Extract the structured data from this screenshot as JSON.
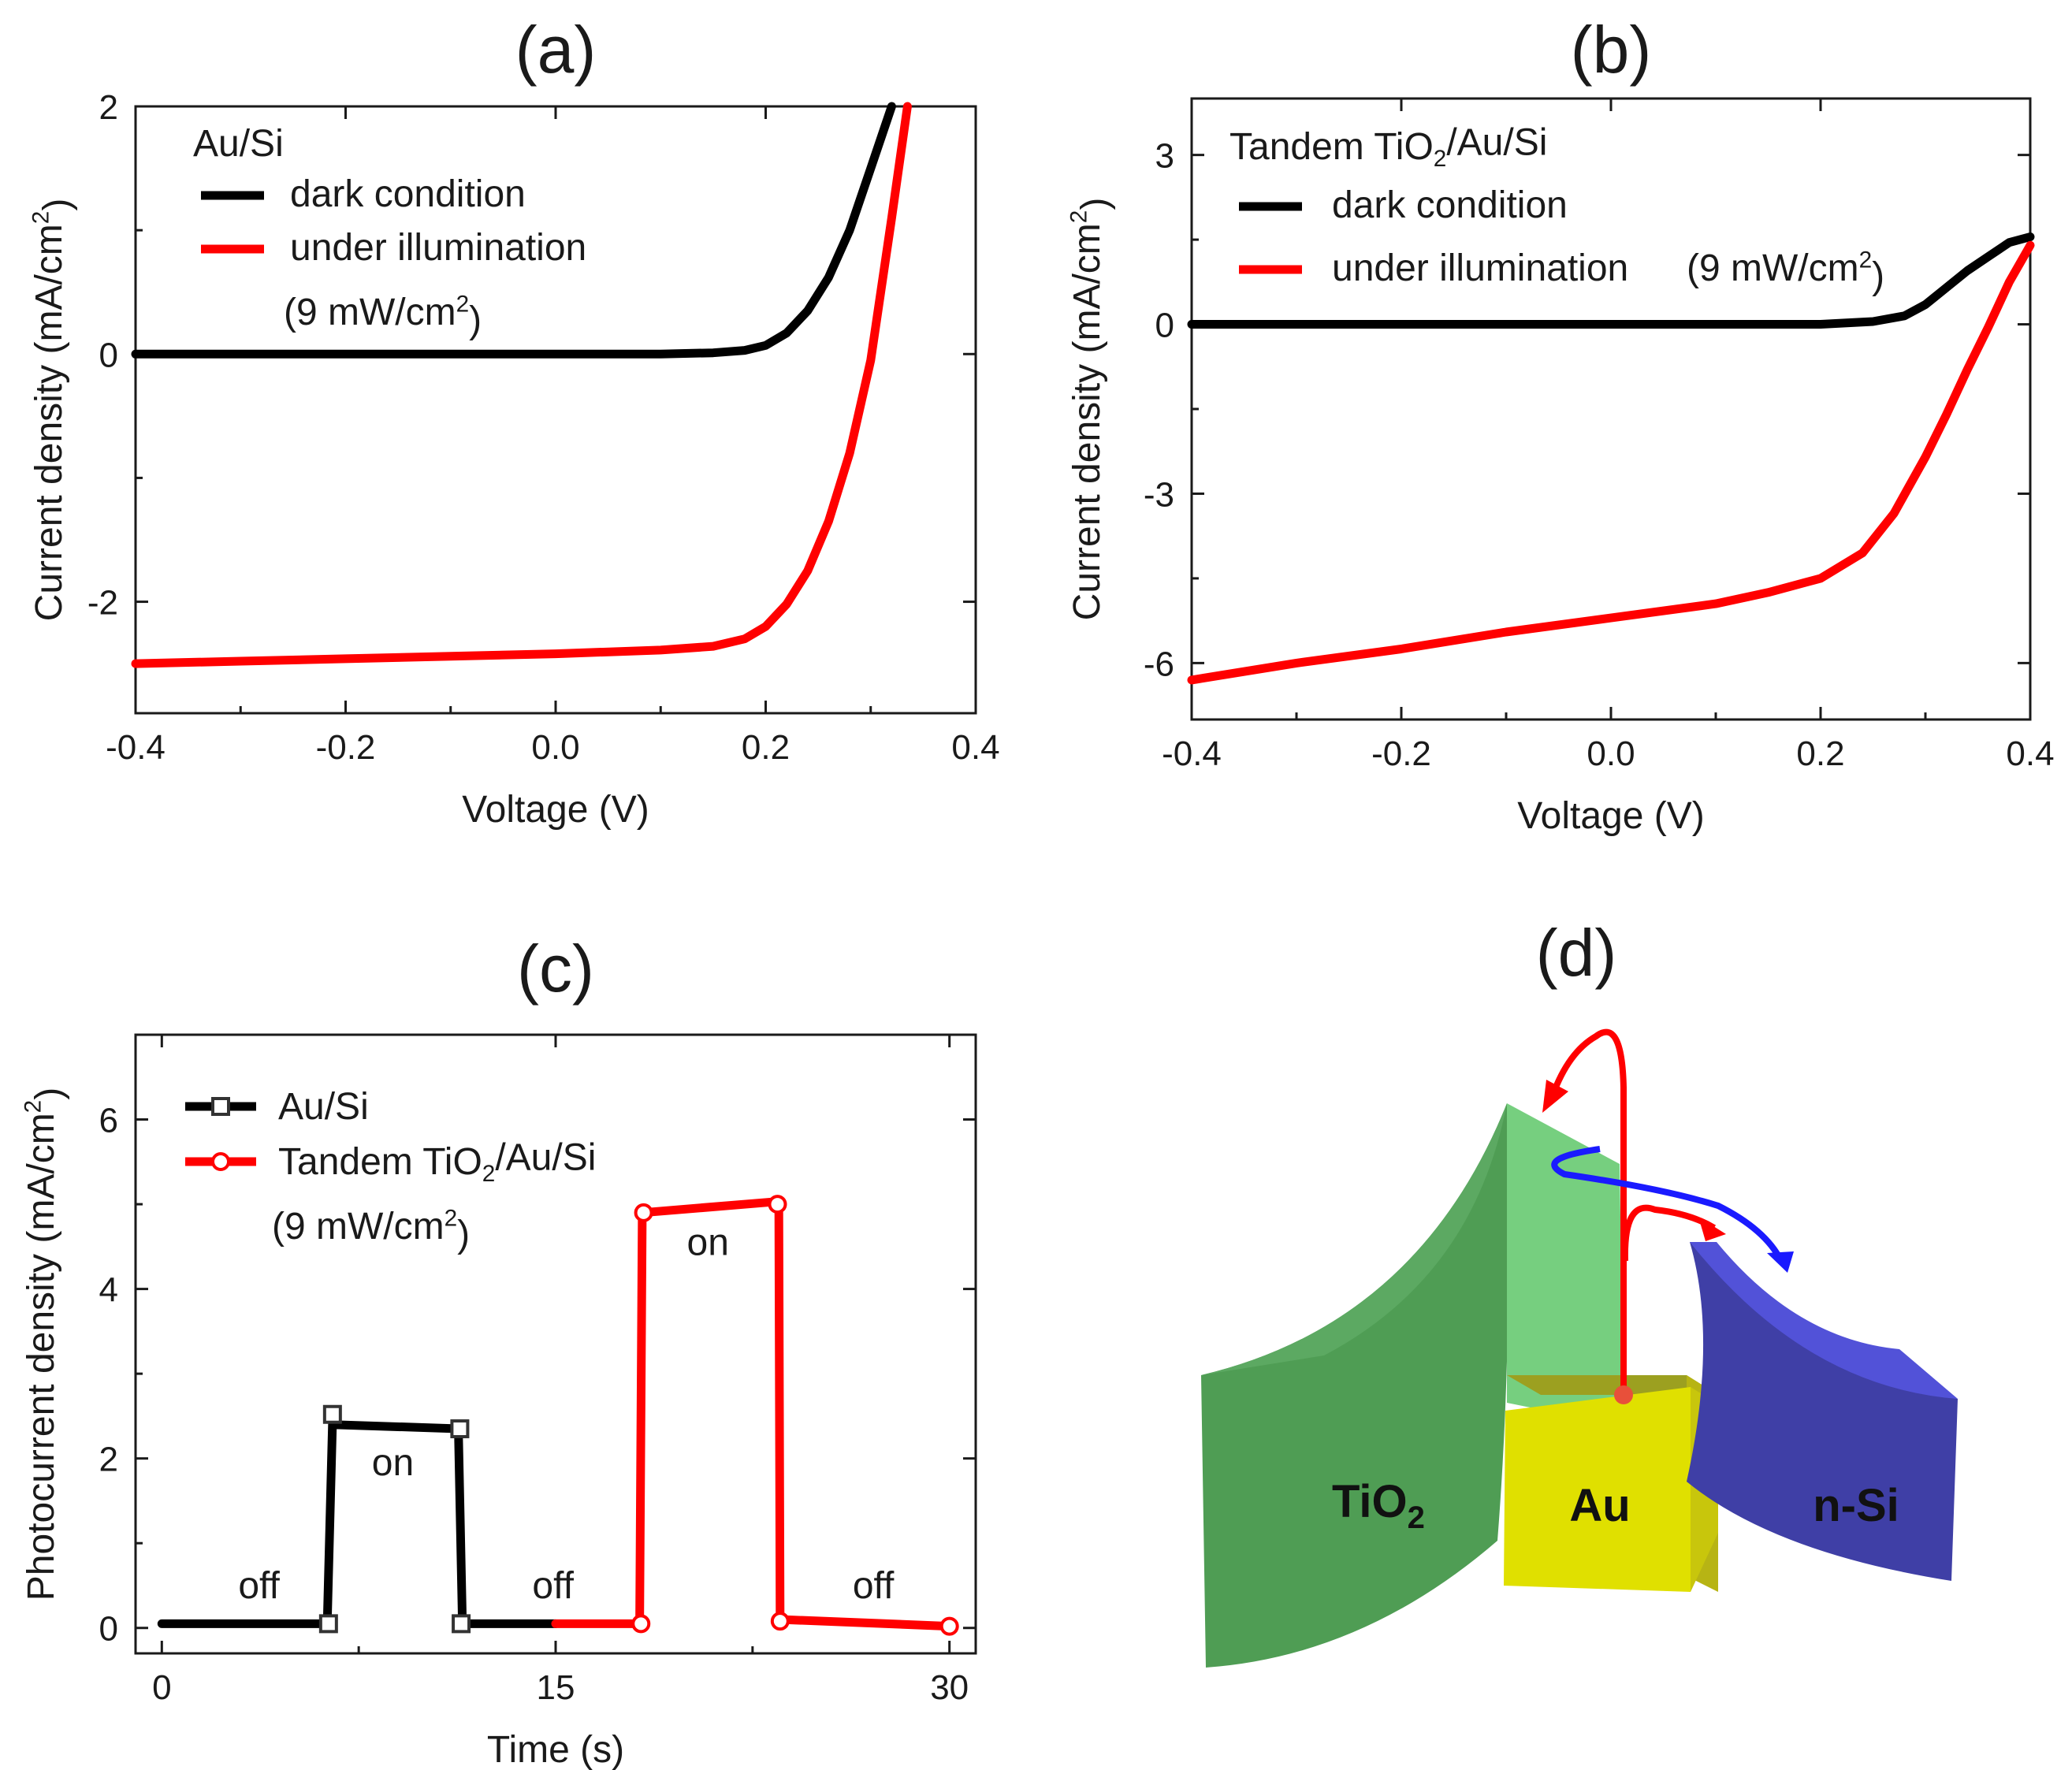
{
  "colors": {
    "dark": "#000000",
    "illum": "#ff0000",
    "tio2": "#4f9d54",
    "tio2_light": "#76cf7f",
    "au": "#e0e000",
    "nsi": "#3f3fa6",
    "blue_arrow": "#1a1aff"
  },
  "chart_data": [
    {
      "panel": "(a)",
      "type": "line",
      "xlabel": "Voltage (V)",
      "ylabel": "Current density (mA/cm",
      "ylabel_sup": "2",
      "ylabel_close": ")",
      "xlim": [
        -0.4,
        0.4
      ],
      "ylim": [
        -2.9,
        2.0
      ],
      "xticks": [
        -0.4,
        -0.2,
        0.0,
        0.2,
        0.4
      ],
      "xtick_labels": [
        "-0.4",
        "-0.2",
        "0.0",
        "0.2",
        "0.4"
      ],
      "yticks": [
        -2,
        0,
        2
      ],
      "ytick_labels": [
        "-2",
        "0",
        "2"
      ],
      "legend_title": "Au/Si",
      "legend_note": "(9 mW/cm",
      "legend_note_sup": "2",
      "legend_note_close": ")",
      "series": [
        {
          "name": "dark condition",
          "color_key": "dark",
          "x": [
            -0.4,
            -0.2,
            0.0,
            0.1,
            0.15,
            0.18,
            0.2,
            0.22,
            0.24,
            0.26,
            0.28,
            0.3,
            0.31,
            0.32
          ],
          "y": [
            0.0,
            0.0,
            0.0,
            0.0,
            0.01,
            0.03,
            0.07,
            0.17,
            0.35,
            0.62,
            1.0,
            1.5,
            1.75,
            2.0
          ]
        },
        {
          "name": "under illumination",
          "color_key": "illum",
          "x": [
            -0.4,
            -0.3,
            -0.2,
            -0.1,
            0.0,
            0.1,
            0.15,
            0.18,
            0.2,
            0.22,
            0.24,
            0.26,
            0.28,
            0.3,
            0.32,
            0.335
          ],
          "y": [
            -2.5,
            -2.48,
            -2.46,
            -2.44,
            -2.42,
            -2.39,
            -2.36,
            -2.3,
            -2.2,
            -2.02,
            -1.75,
            -1.35,
            -0.8,
            -0.05,
            1.1,
            2.0
          ]
        }
      ]
    },
    {
      "panel": "(b)",
      "type": "line",
      "xlabel": "Voltage (V)",
      "ylabel": "Current density (mA/cm",
      "ylabel_sup": "2",
      "ylabel_close": ")",
      "xlim": [
        -0.4,
        0.4
      ],
      "ylim": [
        -7.0,
        4.0
      ],
      "xticks": [
        -0.4,
        -0.2,
        0.0,
        0.2,
        0.4
      ],
      "xtick_labels": [
        "-0.4",
        "-0.2",
        "0.0",
        "0.2",
        "0.4"
      ],
      "yticks": [
        -6,
        -3,
        0,
        3
      ],
      "ytick_labels": [
        "-6",
        "-3",
        "0",
        "3"
      ],
      "legend_title_a": "Tandem TiO",
      "legend_title_sub": "2",
      "legend_title_b": "/Au/Si",
      "legend_illum_note": "(9 mW/cm",
      "legend_illum_note_sup": "2",
      "legend_illum_note_close": ")",
      "series": [
        {
          "name": "dark condition",
          "color_key": "dark",
          "x": [
            -0.4,
            -0.2,
            0.0,
            0.1,
            0.2,
            0.25,
            0.28,
            0.3,
            0.32,
            0.34,
            0.36,
            0.38,
            0.4
          ],
          "y": [
            0.0,
            0.0,
            0.0,
            0.0,
            0.0,
            0.05,
            0.15,
            0.35,
            0.65,
            0.95,
            1.2,
            1.45,
            1.55
          ]
        },
        {
          "name": "under illumination",
          "color_key": "illum",
          "x": [
            -0.4,
            -0.3,
            -0.2,
            -0.1,
            0.0,
            0.1,
            0.15,
            0.2,
            0.24,
            0.27,
            0.3,
            0.32,
            0.34,
            0.36,
            0.38,
            0.4
          ],
          "y": [
            -6.3,
            -6.0,
            -5.75,
            -5.45,
            -5.2,
            -4.95,
            -4.75,
            -4.5,
            -4.05,
            -3.35,
            -2.35,
            -1.6,
            -0.8,
            -0.05,
            0.75,
            1.4
          ]
        }
      ]
    },
    {
      "panel": "(c)",
      "type": "line",
      "xlabel": "Time (s)",
      "ylabel": "Photocurrent density (mA/cm",
      "ylabel_sup": "2",
      "ylabel_close": ")",
      "xlim": [
        -1,
        31
      ],
      "ylim": [
        -0.3,
        7.0
      ],
      "xticks": [
        0,
        15,
        30
      ],
      "xtick_labels": [
        "0",
        "15",
        "30"
      ],
      "yticks": [
        0,
        2,
        4,
        6
      ],
      "ytick_labels": [
        "0",
        "2",
        "4",
        "6"
      ],
      "legend_au": "Au/Si",
      "legend_tandem_a": "Tandem TiO",
      "legend_tandem_sub": "2",
      "legend_tandem_b": "/Au/Si",
      "legend_note": "(9 mW/cm",
      "legend_note_sup": "2",
      "legend_note_close": ")",
      "annotations": [
        {
          "text": "off",
          "x": 3.7,
          "y": 0.35
        },
        {
          "text": "on",
          "x": 8.8,
          "y": 1.8
        },
        {
          "text": "off",
          "x": 14.9,
          "y": 0.35
        },
        {
          "text": "on",
          "x": 20.8,
          "y": 4.4
        },
        {
          "text": "off",
          "x": 27.1,
          "y": 0.35
        }
      ],
      "series": [
        {
          "name": "Au/Si",
          "color_key": "dark",
          "x": [
            0,
            6.3,
            6.5,
            11.3,
            11.3,
            11.45,
            15
          ],
          "y": [
            0.05,
            0.05,
            2.4,
            2.35,
            2.3,
            0.05,
            0.05
          ],
          "markers": [
            [
              6.35,
              0.05
            ],
            [
              6.5,
              2.52
            ],
            [
              11.35,
              2.35
            ],
            [
              11.4,
              0.05
            ]
          ]
        },
        {
          "name": "Tandem TiO2/Au/Si",
          "color_key": "illum",
          "x": [
            15,
            18.2,
            18.3,
            23.4,
            23.5,
            23.55,
            30
          ],
          "y": [
            0.05,
            0.05,
            4.9,
            5.03,
            4.9,
            0.1,
            0.02
          ],
          "markers": [
            [
              18.25,
              0.05
            ],
            [
              18.35,
              4.9
            ],
            [
              23.45,
              5.0
            ],
            [
              23.55,
              0.08
            ],
            [
              30,
              0.02
            ]
          ]
        }
      ]
    }
  ],
  "diagram": {
    "panel": "(d)",
    "tio2_label": "TiO",
    "tio2_sub": "2",
    "au_label": "Au",
    "nsi_label": "n-Si"
  }
}
